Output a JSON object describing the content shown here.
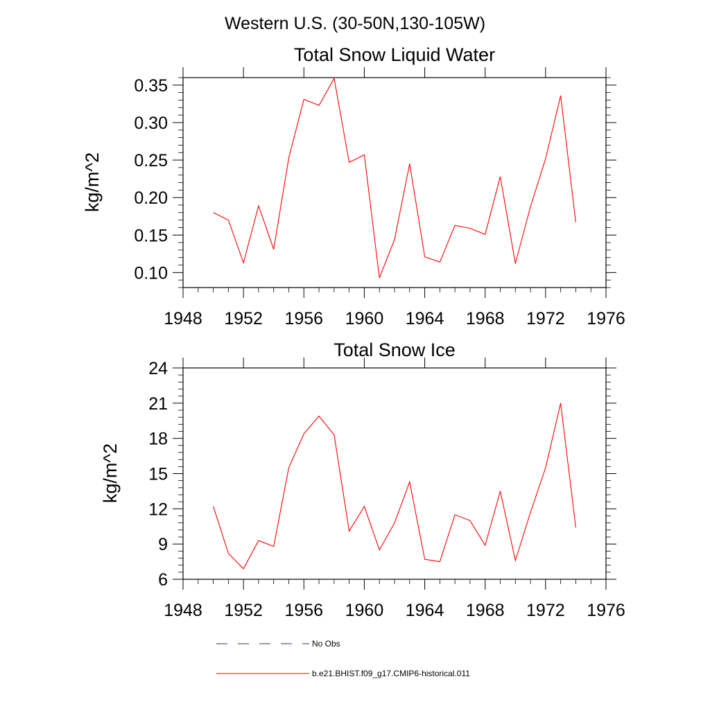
{
  "figure": {
    "title": "Western U.S. (30-50N,130-105W)"
  },
  "chart_data": [
    {
      "type": "line",
      "title": "Total Snow Liquid Water",
      "xlabel": "",
      "ylabel": "kg/m^2",
      "xlim": [
        1948,
        1976
      ],
      "ylim": [
        0.08,
        0.36
      ],
      "xticks": [
        "1948",
        "1952",
        "1956",
        "1960",
        "1964",
        "1968",
        "1972",
        "1976"
      ],
      "yticks": [
        "0.10",
        "0.15",
        "0.20",
        "0.25",
        "0.30",
        "0.35"
      ],
      "grid": false,
      "x": [
        1950,
        1951,
        1952,
        1953,
        1954,
        1955,
        1956,
        1957,
        1958,
        1959,
        1960,
        1961,
        1962,
        1963,
        1964,
        1965,
        1966,
        1967,
        1968,
        1969,
        1970,
        1971,
        1972,
        1973,
        1974
      ],
      "series": [
        {
          "name": "b.e21.BHIST.f09_g17.CMIP6-historical.011",
          "color": "#ff0000",
          "values": [
            0.18,
            0.17,
            0.113,
            0.189,
            0.131,
            0.253,
            0.331,
            0.323,
            0.359,
            0.247,
            0.257,
            0.093,
            0.144,
            0.245,
            0.121,
            0.114,
            0.163,
            0.159,
            0.151,
            0.228,
            0.112,
            0.188,
            0.252,
            0.336,
            0.167
          ]
        }
      ]
    },
    {
      "type": "line",
      "title": "Total Snow Ice",
      "xlabel": "",
      "ylabel": "kg/m^2",
      "xlim": [
        1948,
        1976
      ],
      "ylim": [
        6,
        24
      ],
      "xticks": [
        "1948",
        "1952",
        "1956",
        "1960",
        "1964",
        "1968",
        "1972",
        "1976"
      ],
      "yticks": [
        "6",
        "9",
        "12",
        "15",
        "18",
        "21",
        "24"
      ],
      "grid": false,
      "x": [
        1950,
        1951,
        1952,
        1953,
        1954,
        1955,
        1956,
        1957,
        1958,
        1959,
        1960,
        1961,
        1962,
        1963,
        1964,
        1965,
        1966,
        1967,
        1968,
        1969,
        1970,
        1971,
        1972,
        1973,
        1974
      ],
      "series": [
        {
          "name": "b.e21.BHIST.f09_g17.CMIP6-historical.011",
          "color": "#ff0000",
          "values": [
            12.2,
            8.2,
            6.9,
            9.3,
            8.8,
            15.5,
            18.4,
            19.9,
            18.3,
            10.1,
            12.2,
            8.5,
            10.8,
            14.3,
            7.7,
            7.5,
            11.5,
            11.0,
            8.9,
            13.5,
            7.6,
            11.7,
            15.5,
            21.0,
            10.4
          ]
        }
      ]
    }
  ],
  "legend": {
    "placement": "bottom",
    "items": [
      {
        "label": "No Obs",
        "style": "dashed",
        "color": "#333366"
      },
      {
        "label": "b.e21.BHIST.f09_g17.CMIP6-historical.011",
        "style": "solid",
        "color": "#ff0000"
      }
    ]
  }
}
